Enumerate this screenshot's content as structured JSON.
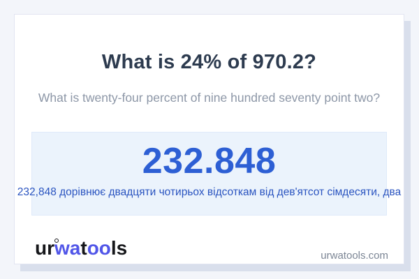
{
  "question": {
    "title": "What is 24% of 970.2?",
    "subtitle": "What is twenty-four percent of nine hundred seventy point two?"
  },
  "answer": {
    "value": "232.848",
    "sentence": "232,848 дорівнює двадцяти чотирьох відсоткам від дев'ятсот сімдесяти, два"
  },
  "footer": {
    "logo": {
      "part_ur": "ur",
      "part_wa": "wa",
      "part_t": "t",
      "part_oo": "oo",
      "part_ls": "ls"
    },
    "website": "urwatools.com"
  },
  "colors": {
    "page_background": "#f3f5fa",
    "card_background": "#ffffff",
    "card_shadow": "#d9dfec",
    "title_text": "#2d3b4f",
    "subtitle_text": "#8d97a7",
    "answer_box_background": "#ebf3fc",
    "answer_value_blue": "#2d5fd4",
    "answer_sentence_blue": "#2a54c0",
    "logo_blue": "#5156e8",
    "logo_black": "#15161a",
    "website_text": "#7c8695"
  }
}
